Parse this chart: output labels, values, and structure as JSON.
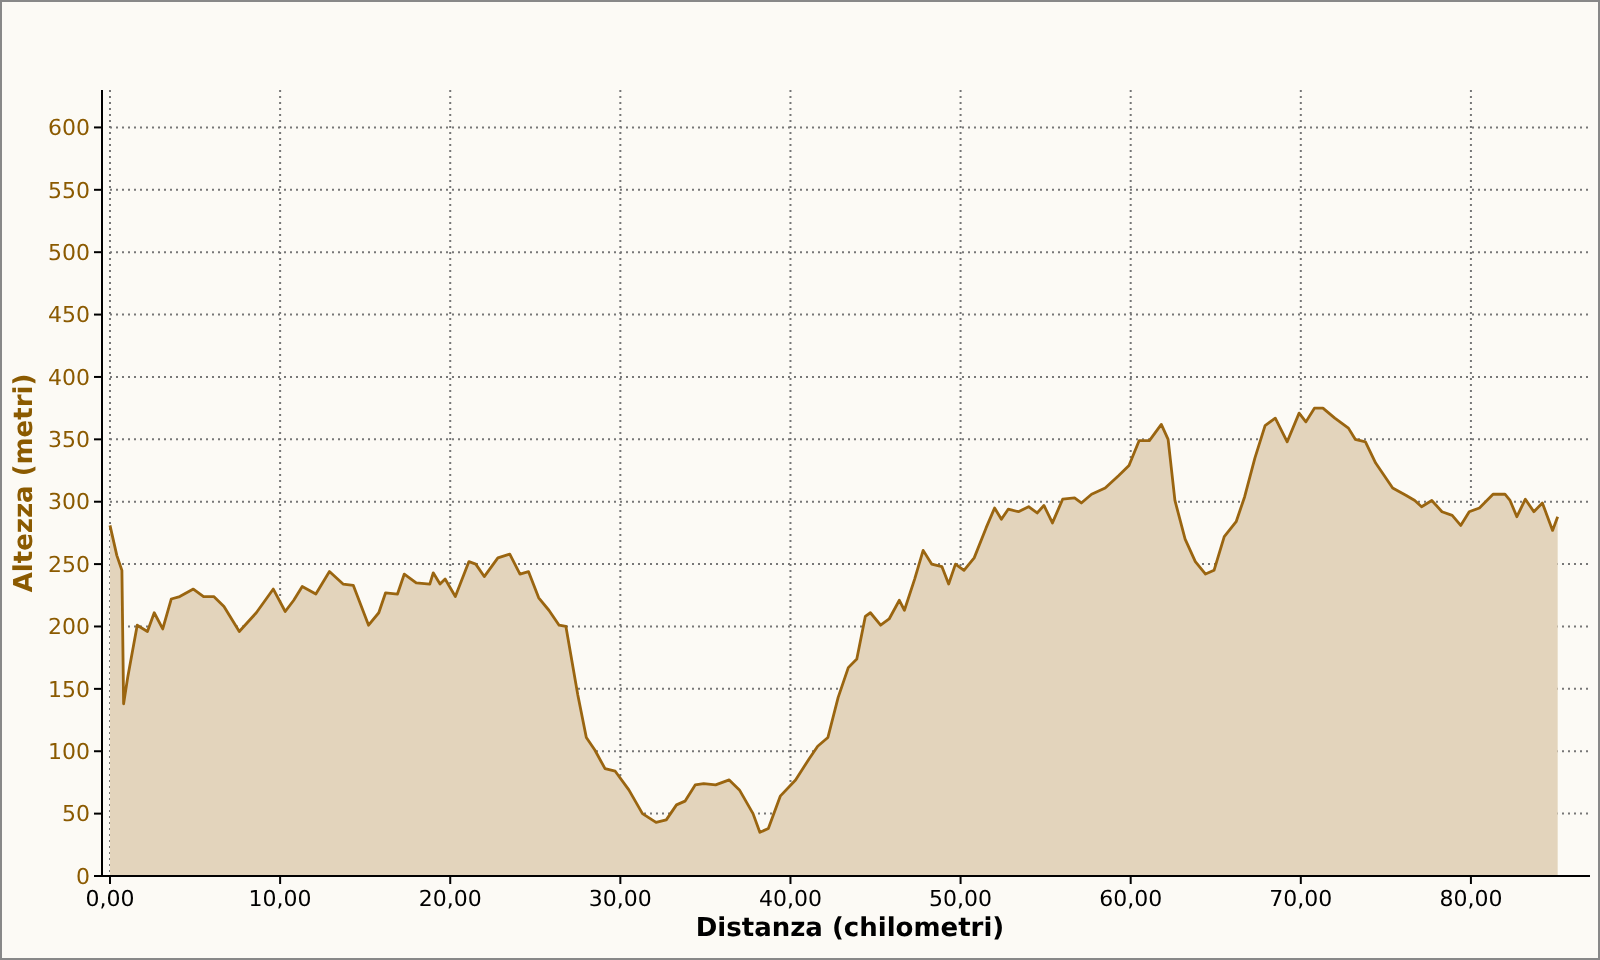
{
  "chart_data": {
    "type": "area",
    "xlabel": "Distanza (chilometri)",
    "ylabel": "Altezza (metri)",
    "xlim": [
      0,
      87
    ],
    "ylim": [
      0,
      630
    ],
    "xticks": [
      {
        "value": 0,
        "label": "0,00"
      },
      {
        "value": 10,
        "label": "10,00"
      },
      {
        "value": 20,
        "label": "20,00"
      },
      {
        "value": 30,
        "label": "30,00"
      },
      {
        "value": 40,
        "label": "40,00"
      },
      {
        "value": 50,
        "label": "50,00"
      },
      {
        "value": 60,
        "label": "60,00"
      },
      {
        "value": 70,
        "label": "70,00"
      },
      {
        "value": 80,
        "label": "80,00"
      }
    ],
    "yticks": [
      0,
      50,
      100,
      150,
      200,
      250,
      300,
      350,
      400,
      450,
      500,
      550,
      600
    ],
    "grid": true,
    "series": [
      {
        "color": "#9a6510",
        "x": [
          0,
          0.4,
          0.7,
          0.8,
          1.05,
          1.6,
          2.2,
          2.6,
          3.1,
          3.6,
          4.1,
          4.9,
          5.5,
          6.1,
          6.7,
          7.6,
          8.6,
          9.6,
          10.3,
          10.8,
          11.3,
          12.1,
          12.9,
          13.7,
          14.3,
          15.2,
          15.8,
          16.2,
          16.9,
          17.3,
          18,
          18.8,
          19,
          19.4,
          19.7,
          20.3,
          21.1,
          21.5,
          22,
          22.8,
          23.5,
          24.1,
          24.6,
          25.2,
          25.8,
          26.4,
          26.8,
          27.5,
          28,
          28.5,
          29.1,
          29.7,
          30.5,
          31.3,
          32.1,
          32.7,
          33.3,
          33.8,
          34.4,
          34.9,
          35.6,
          36.4,
          37,
          37.8,
          38.2,
          38.7,
          39.4,
          40.3,
          41.1,
          41.6,
          42.2,
          42.8,
          43.4,
          43.9,
          44.4,
          44.7,
          45.3,
          45.8,
          46.4,
          46.7,
          47.3,
          47.8,
          48.3,
          48.9,
          49.3,
          49.7,
          50.2,
          50.8,
          51.5,
          52,
          52.4,
          52.8,
          53.4,
          54,
          54.5,
          54.9,
          55.4,
          56,
          56.7,
          57.1,
          57.7,
          58.5,
          59.3,
          59.9,
          60.5,
          61.1,
          61.8,
          62.2,
          62.6,
          63.2,
          63.8,
          64.4,
          64.9,
          65.5,
          66.2,
          66.7,
          67.3,
          67.9,
          68.5,
          69.2,
          69.9,
          70.3,
          70.8,
          71.3,
          72,
          72.8,
          73.2,
          73.8,
          74.4,
          75.4,
          76.2,
          76.7,
          77.1,
          77.7,
          78.3,
          78.9,
          79.4,
          79.9,
          80.5,
          81.3,
          82,
          82.3,
          82.7,
          83.2,
          83.7,
          84.2,
          84.8,
          85.1
        ],
        "values": [
          281,
          257,
          245,
          138,
          160,
          201,
          196,
          211,
          198,
          222,
          224,
          230,
          224,
          224,
          216,
          196,
          211,
          230,
          212,
          221,
          232,
          226,
          244,
          234,
          233,
          201,
          211,
          227,
          226,
          242,
          235,
          234,
          243,
          234,
          238,
          224,
          252,
          250,
          240,
          255,
          258,
          242,
          244,
          223,
          213,
          201,
          200,
          145,
          111,
          101,
          86,
          84,
          69,
          50,
          43,
          45,
          57,
          60,
          73,
          74,
          73,
          77,
          69,
          50,
          35,
          38,
          64,
          77,
          94,
          104,
          111,
          143,
          167,
          174,
          208,
          211,
          201,
          206,
          221,
          213,
          238,
          261,
          250,
          248,
          234,
          250,
          245,
          255,
          279,
          295,
          286,
          294,
          292,
          296,
          291,
          297,
          283,
          302,
          303,
          299,
          306,
          311,
          321,
          329,
          349,
          349,
          362,
          350,
          301,
          270,
          252,
          242,
          245,
          272,
          284,
          304,
          335,
          361,
          367,
          348,
          371,
          364,
          375,
          375,
          367,
          359,
          350,
          348,
          331,
          311,
          305,
          301,
          296,
          301,
          292,
          289,
          281,
          292,
          295,
          306,
          306,
          301,
          288,
          302,
          292,
          299,
          277,
          288
        ]
      }
    ]
  }
}
